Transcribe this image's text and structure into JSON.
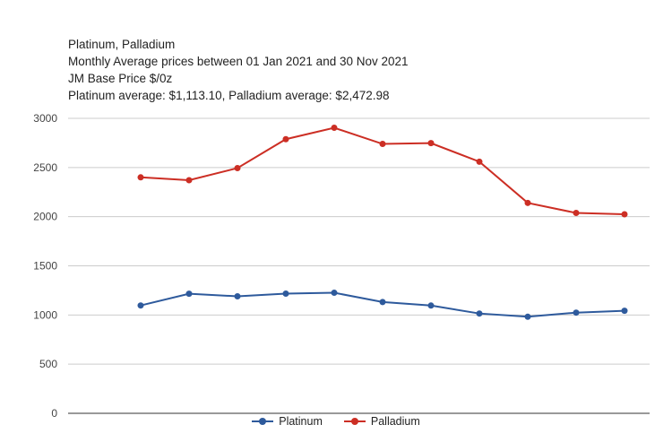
{
  "title_lines": [
    "Platinum, Palladium",
    "Monthly Average prices between 01 Jan 2021 and 30 Nov 2021",
    "JM Base Price $/0z",
    "Platinum average: $1,113.10, Palladium average: $2,472.98"
  ],
  "chart_data": {
    "type": "line",
    "title": "Platinum, Palladium",
    "xlabel": "",
    "ylabel": "",
    "ylim": [
      0,
      3000
    ],
    "yticks": [
      0,
      500,
      1000,
      1500,
      2000,
      2500,
      3000
    ],
    "ytick_labels": [
      "0",
      "500",
      "1000",
      "1500",
      "2000",
      "2500",
      "3000"
    ],
    "grid": true,
    "legend_position": "bottom",
    "series": [
      {
        "name": "Platinum",
        "color": "#2e5a9c",
        "values": [
          1097,
          1216,
          1190,
          1217,
          1226,
          1132,
          1096,
          1015,
          982,
          1024,
          1043
        ]
      },
      {
        "name": "Palladium",
        "color": "#cc2e24",
        "values": [
          2400,
          2371,
          2494,
          2788,
          2904,
          2740,
          2748,
          2559,
          2140,
          2038,
          2024
        ]
      }
    ]
  }
}
